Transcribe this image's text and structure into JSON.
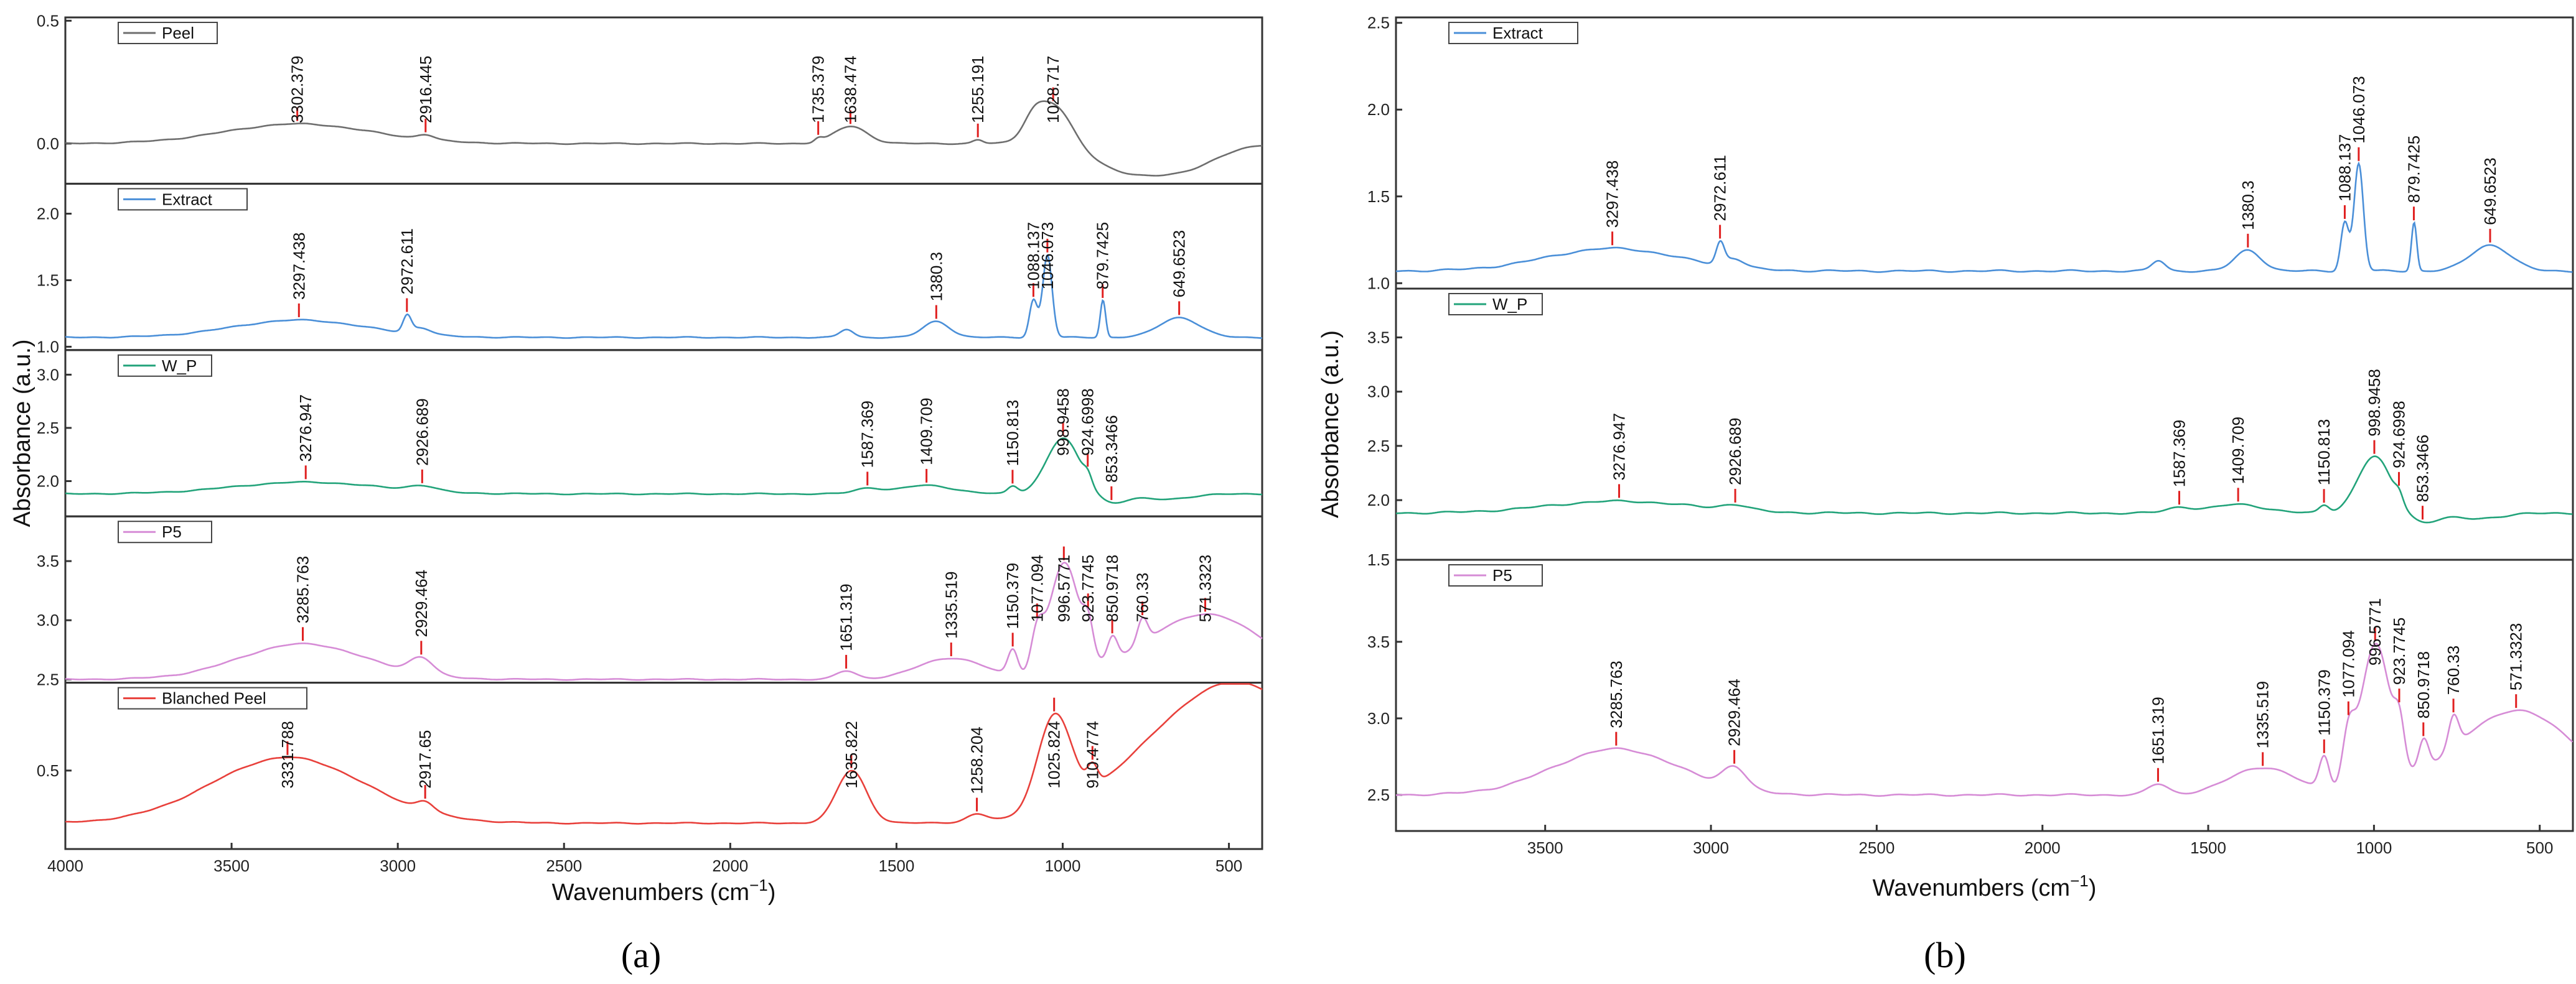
{
  "figure": {
    "panel_a_label": "(a)",
    "panel_b_label": "(b)"
  },
  "chart_data": [
    {
      "type": "line",
      "panel": "a",
      "xlabel": "Wavenumbers (cm",
      "xlabel_sup": "−1",
      "xlabel_close": ")",
      "ylabel": "Absorbance (a.u.)",
      "xlim": [
        4000,
        400
      ],
      "xticks": [
        4000,
        3500,
        3000,
        2500,
        2000,
        1500,
        1000,
        500
      ],
      "subplots": [
        {
          "name": "Peel",
          "color": "#6e6e6e",
          "ylim": [
            -0.15,
            0.5
          ],
          "yticks": [
            0.0,
            0.5
          ],
          "ytick_labels": [
            "0.0",
            "0.5"
          ],
          "baseline": 0.0,
          "features": [
            [
              3300,
              0.08,
              220
            ],
            [
              2916,
              0.02,
              25
            ],
            [
              1735,
              0.015,
              12
            ],
            [
              1638,
              0.07,
              50
            ],
            [
              1255,
              0.015,
              15
            ],
            [
              1028,
              0.17,
              55
            ],
            [
              1090,
              0.06,
              30
            ],
            [
              780,
              -0.12,
              120
            ],
            [
              600,
              -0.06,
              90
            ]
          ],
          "peaks": [
            3302.379,
            2916.445,
            1735.379,
            1638.474,
            1255.191,
            1028.717
          ],
          "peak_labels": [
            "3302.379",
            "2916.445",
            "1735.379",
            "1638.474",
            "1255.191",
            "1028.717"
          ]
        },
        {
          "name": "Extract",
          "color": "#4a8fd8",
          "ylim": [
            1.0,
            2.2
          ],
          "yticks": [
            1.0,
            1.5,
            2.0
          ],
          "ytick_labels": [
            "1.0",
            "1.5",
            "2.0"
          ],
          "baseline": 1.07,
          "features": [
            [
              3297,
              0.13,
              200
            ],
            [
              2972,
              0.12,
              12
            ],
            [
              2930,
              0.05,
              30
            ],
            [
              1650,
              0.06,
              20
            ],
            [
              1380,
              0.12,
              40
            ],
            [
              1088,
              0.28,
              12
            ],
            [
              1046,
              0.62,
              14
            ],
            [
              879,
              0.28,
              8
            ],
            [
              649,
              0.15,
              60
            ]
          ],
          "peaks": [
            3297.438,
            2972.611,
            1380.3,
            1088.137,
            1046.073,
            879.7425,
            649.6523
          ],
          "peak_labels": [
            "3297.438",
            "2972.611",
            "1380.3",
            "1088.137",
            "1046.073",
            "879.7425",
            "649.6523"
          ]
        },
        {
          "name": "W_P",
          "color": "#22a37a",
          "ylim": [
            1.7,
            3.2
          ],
          "yticks": [
            2.0,
            2.5,
            3.0
          ],
          "ytick_labels": [
            "2.0",
            "2.5",
            "3.0"
          ],
          "baseline": 1.88,
          "features": [
            [
              3276,
              0.11,
              220
            ],
            [
              2926,
              0.05,
              40
            ],
            [
              1587,
              0.05,
              40
            ],
            [
              1409,
              0.08,
              80
            ],
            [
              1150,
              0.07,
              15
            ],
            [
              999,
              0.52,
              50
            ],
            [
              924,
              0.08,
              12
            ],
            [
              853,
              -0.08,
              40
            ],
            [
              700,
              -0.05,
              80
            ]
          ],
          "peaks": [
            3276.947,
            2926.689,
            1587.369,
            1409.709,
            1150.813,
            998.9458,
            924.6998,
            853.3466
          ],
          "peak_labels": [
            "3276.947",
            "2926.689",
            "1587.369",
            "1409.709",
            "1150.813",
            "998.9458",
            "924.6998",
            "853.3466"
          ]
        },
        {
          "name": "P5",
          "color": "#d68cd6",
          "ylim": [
            2.5,
            3.85
          ],
          "yticks": [
            2.5,
            3.0,
            3.5
          ],
          "ytick_labels": [
            "2.5",
            "3.0",
            "3.5"
          ],
          "baseline": 2.5,
          "features": [
            [
              3285,
              0.3,
              190
            ],
            [
              2929,
              0.14,
              35
            ],
            [
              1651,
              0.07,
              30
            ],
            [
              1335,
              0.18,
              100
            ],
            [
              1150,
              0.22,
              15
            ],
            [
              1077,
              0.3,
              18
            ],
            [
              996,
              0.95,
              45
            ],
            [
              923,
              0.25,
              15
            ],
            [
              850,
              0.2,
              15
            ],
            [
              760,
              0.2,
              15
            ],
            [
              571,
              0.55,
              180
            ]
          ],
          "peaks": [
            3285.763,
            2929.464,
            1651.319,
            1335.519,
            1150.379,
            1077.094,
            996.5771,
            923.7745,
            850.9718,
            760.33,
            571.3323
          ],
          "peak_labels": [
            "3285.763",
            "2929.464",
            "1651.319",
            "1335.519",
            "1150.379",
            "1077.094",
            "996.5771",
            "923.7745",
            "850.9718",
            "760.33",
            "571.3323"
          ]
        },
        {
          "name": "Blanched Peel",
          "color": "#e8403b",
          "ylim": [
            0.1,
            0.95
          ],
          "yticks": [
            0.5
          ],
          "ytick_labels": [
            "0.5"
          ],
          "baseline": 0.22,
          "features": [
            [
              3331,
              0.35,
              230
            ],
            [
              2917,
              0.05,
              25
            ],
            [
              1635,
              0.28,
              45
            ],
            [
              1258,
              0.04,
              30
            ],
            [
              1025,
              0.5,
              50
            ],
            [
              910,
              0.1,
              15
            ],
            [
              480,
              0.75,
              260
            ]
          ],
          "peaks": [
            3331.788,
            2917.65,
            1635.822,
            1258.204,
            1025.824,
            910.4774
          ],
          "peak_labels": [
            "3331.788",
            "2917.65",
            "1635.822",
            "1258.204",
            "1025.824",
            "910.4774"
          ]
        }
      ]
    },
    {
      "type": "line",
      "panel": "b",
      "xlabel": "Wavenumbers (cm",
      "xlabel_sup": "−1",
      "xlabel_close": ")",
      "ylabel": "Absorbance (a.u.)",
      "xlim": [
        3950,
        400
      ],
      "xticks": [
        3500,
        3000,
        2500,
        2000,
        1500,
        1000,
        500
      ],
      "subplots": [
        {
          "name": "Extract",
          "color": "#4a8fd8",
          "ylim": [
            1.0,
            2.5
          ],
          "yticks": [
            1.0,
            1.5,
            2.0,
            2.5
          ],
          "ytick_labels": [
            "1.0",
            "1.5",
            "2.0",
            "2.5"
          ],
          "baseline": 1.07,
          "features": [
            [
              3297,
              0.13,
              200
            ],
            [
              2972,
              0.12,
              12
            ],
            [
              2930,
              0.05,
              30
            ],
            [
              1650,
              0.06,
              20
            ],
            [
              1380,
              0.12,
              40
            ],
            [
              1088,
              0.28,
              12
            ],
            [
              1046,
              0.62,
              14
            ],
            [
              879,
              0.28,
              8
            ],
            [
              649,
              0.15,
              60
            ]
          ],
          "peaks": [
            3297.438,
            2972.611,
            1380.3,
            1088.137,
            1046.073,
            879.7425,
            649.6523
          ],
          "peak_labels": [
            "3297.438",
            "2972.611",
            "1380.3",
            "1088.137",
            "1046.073",
            "879.7425",
            "649.6523"
          ]
        },
        {
          "name": "W_P",
          "color": "#22a37a",
          "ylim": [
            1.5,
            3.9
          ],
          "yticks": [
            2.0,
            2.5,
            3.0,
            3.5
          ],
          "ytick_labels": [
            "2.0",
            "2.5",
            "3.0",
            "3.5"
          ],
          "baseline": 1.88,
          "features": [
            [
              3276,
              0.11,
              220
            ],
            [
              2926,
              0.05,
              40
            ],
            [
              1587,
              0.05,
              40
            ],
            [
              1409,
              0.08,
              80
            ],
            [
              1150,
              0.07,
              15
            ],
            [
              999,
              0.52,
              50
            ],
            [
              924,
              0.08,
              12
            ],
            [
              853,
              -0.08,
              40
            ],
            [
              700,
              -0.05,
              80
            ]
          ],
          "peaks": [
            3276.947,
            2926.689,
            1587.369,
            1409.709,
            1150.813,
            998.9458,
            924.6998,
            853.3466
          ],
          "peak_labels": [
            "3276.947",
            "2926.689",
            "1587.369",
            "1409.709",
            "1150.813",
            "998.9458",
            "924.6998",
            "853.3466"
          ]
        },
        {
          "name": "P5",
          "color": "#d68cd6",
          "ylim": [
            2.3,
            4.0
          ],
          "yticks": [
            2.5,
            3.0,
            3.5
          ],
          "ytick_labels": [
            "2.5",
            "3.0",
            "3.5"
          ],
          "baseline": 2.5,
          "features": [
            [
              3285,
              0.3,
              190
            ],
            [
              2929,
              0.14,
              35
            ],
            [
              1651,
              0.07,
              30
            ],
            [
              1335,
              0.18,
              100
            ],
            [
              1150,
              0.22,
              15
            ],
            [
              1077,
              0.3,
              18
            ],
            [
              996,
              0.95,
              45
            ],
            [
              923,
              0.25,
              15
            ],
            [
              850,
              0.2,
              15
            ],
            [
              760,
              0.2,
              15
            ],
            [
              571,
              0.55,
              180
            ]
          ],
          "peaks": [
            3285.763,
            2929.464,
            1651.319,
            1335.519,
            1150.379,
            1077.094,
            996.5771,
            923.7745,
            850.9718,
            760.33,
            571.3323
          ],
          "peak_labels": [
            "3285.763",
            "2929.464",
            "1651.319",
            "1335.519",
            "1150.379",
            "1077.094",
            "996.5771",
            "923.7745",
            "850.9718",
            "760.33",
            "571.3323"
          ],
          "extra_ytick_label": "1.5"
        }
      ]
    }
  ]
}
